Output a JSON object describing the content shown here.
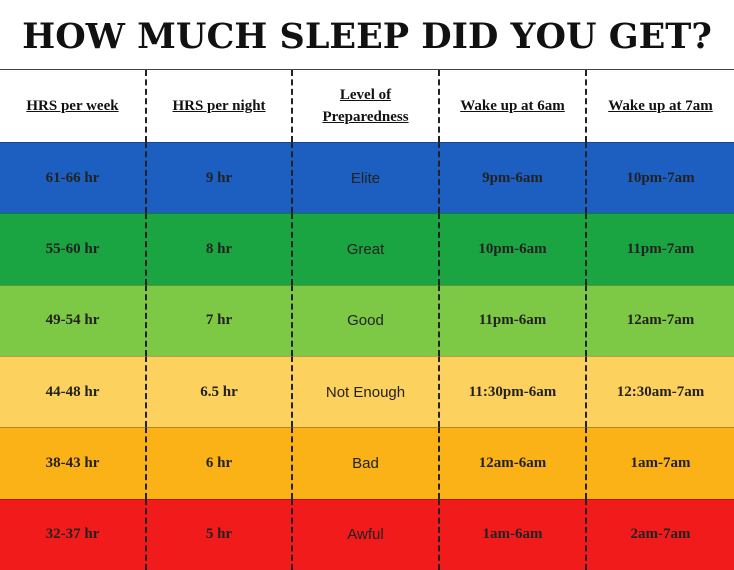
{
  "title": "HOW MUCH SLEEP DID YOU GET?",
  "table": {
    "headers": [
      "HRS per week",
      "HRS per night",
      "Level of Preparedness",
      "Wake up at 6am",
      "Wake up at 7am"
    ],
    "rows": [
      [
        "61-66 hr",
        "9 hr",
        "Elite",
        "9pm-6am",
        "10pm-7am"
      ],
      [
        "55-60 hr",
        "8 hr",
        "Great",
        "10pm-6am",
        "11pm-7am"
      ],
      [
        "49-54 hr",
        "7 hr",
        "Good",
        "11pm-6am",
        "12am-7am"
      ],
      [
        "44-48 hr",
        "6.5 hr",
        "Not Enough",
        "11:30pm-6am",
        "12:30am-7am"
      ],
      [
        "38-43 hr",
        "6 hr",
        "Bad",
        "12am-6am",
        "1am-7am"
      ],
      [
        "32-37 hr",
        "5 hr",
        "Awful",
        "1am-6am",
        "2am-7am"
      ]
    ]
  }
}
